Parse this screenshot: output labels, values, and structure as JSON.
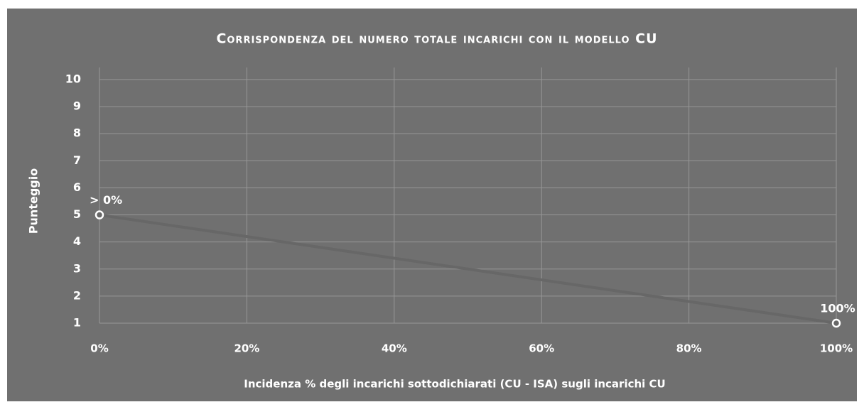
{
  "chart_data": {
    "type": "line",
    "title": "Corrispondenza del numero totale incarichi con il modello CU",
    "x_label": "Incidenza % degli incarichi sottodichiarati (CU - ISA) sugli incarichi CU",
    "y_label": "Punteggio",
    "x": [
      0,
      100
    ],
    "series": [
      {
        "color": "#676767",
        "values": [
          5,
          1
        ],
        "point_labels": [
          "> 0%",
          "100%"
        ]
      }
    ],
    "xlim": [
      0,
      100
    ],
    "xticks": [
      {
        "value": 0,
        "label": "0%"
      },
      {
        "value": 20,
        "label": "20%"
      },
      {
        "value": 40,
        "label": "40%"
      },
      {
        "value": 60,
        "label": "60%"
      },
      {
        "value": 80,
        "label": "80%"
      },
      {
        "value": 100,
        "label": "100%"
      }
    ],
    "ylim": [
      1,
      10
    ],
    "yticks": [
      1,
      2,
      3,
      4,
      5,
      6,
      7,
      8,
      9,
      10
    ],
    "grid": true
  }
}
